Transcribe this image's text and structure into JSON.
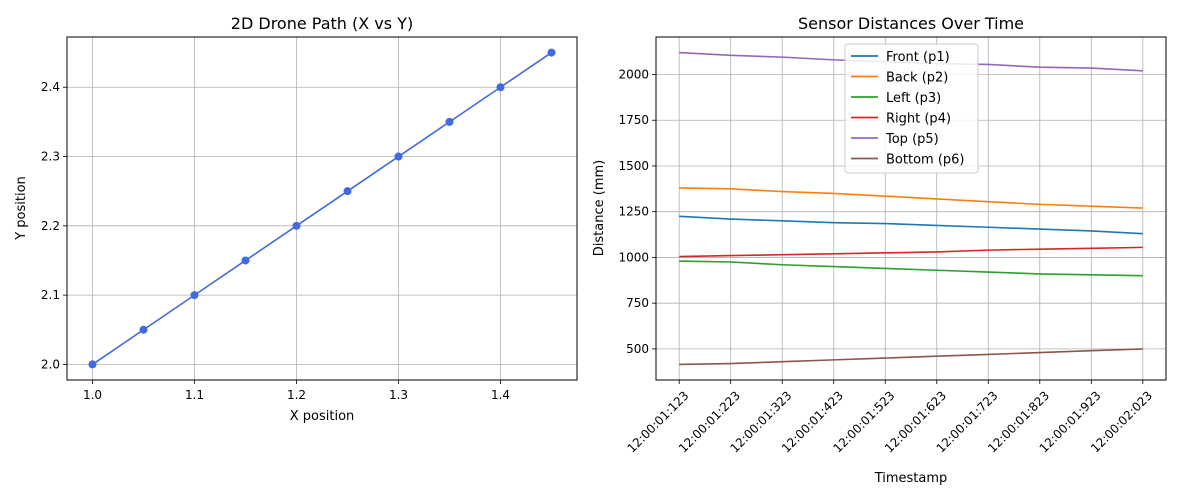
{
  "chart_data": [
    {
      "type": "line",
      "title": "2D Drone Path (X vs Y)",
      "xlabel": "X position",
      "ylabel": "Y position",
      "xlim": [
        0.975,
        1.475
      ],
      "ylim": [
        1.9775,
        2.4725
      ],
      "xticks": [
        1.0,
        1.1,
        1.2,
        1.3,
        1.4
      ],
      "xtick_labels": [
        "1.0",
        "1.1",
        "1.2",
        "1.3",
        "1.4"
      ],
      "yticks": [
        2.0,
        2.1,
        2.2,
        2.3,
        2.4
      ],
      "ytick_labels": [
        "2.0",
        "2.1",
        "2.2",
        "2.3",
        "2.4"
      ],
      "grid": true,
      "markers": true,
      "color": "#4169e1",
      "x": [
        1.0,
        1.05,
        1.1,
        1.15,
        1.2,
        1.25,
        1.3,
        1.35,
        1.4,
        1.45
      ],
      "y": [
        2.0,
        2.05,
        2.1,
        2.15,
        2.2,
        2.25,
        2.3,
        2.35,
        2.4,
        2.45
      ]
    },
    {
      "type": "line",
      "title": "Sensor Distances Over Time",
      "xlabel": "Timestamp",
      "ylabel": "Distance (mm)",
      "ylim": [
        330,
        2205
      ],
      "yticks": [
        500,
        750,
        1000,
        1250,
        1500,
        1750,
        2000
      ],
      "ytick_labels": [
        "500",
        "750",
        "1000",
        "1250",
        "1500",
        "1750",
        "2000"
      ],
      "grid": true,
      "legend_position": "upper-center",
      "categories": [
        "12:00:01:123",
        "12:00:01:223",
        "12:00:01:323",
        "12:00:01:423",
        "12:00:01:523",
        "12:00:01:623",
        "12:00:01:723",
        "12:00:01:823",
        "12:00:01:923",
        "12:00:02:023"
      ],
      "series": [
        {
          "name": "Front (p1)",
          "color": "#1f77b4",
          "values": [
            1225,
            1210,
            1200,
            1190,
            1185,
            1175,
            1165,
            1155,
            1145,
            1130
          ]
        },
        {
          "name": "Back (p2)",
          "color": "#ff7f0e",
          "values": [
            1380,
            1375,
            1360,
            1350,
            1335,
            1320,
            1305,
            1290,
            1280,
            1270
          ]
        },
        {
          "name": "Left (p3)",
          "color": "#2ca02c",
          "values": [
            980,
            975,
            960,
            950,
            940,
            930,
            920,
            910,
            905,
            900
          ]
        },
        {
          "name": "Right (p4)",
          "color": "#d62728",
          "values": [
            1005,
            1010,
            1015,
            1020,
            1025,
            1030,
            1040,
            1045,
            1050,
            1055
          ]
        },
        {
          "name": "Top (p5)",
          "color": "#9467bd",
          "values": [
            2120,
            2105,
            2095,
            2080,
            2070,
            2060,
            2055,
            2040,
            2035,
            2020
          ]
        },
        {
          "name": "Bottom (p6)",
          "color": "#8c564b",
          "values": [
            415,
            420,
            430,
            440,
            450,
            460,
            470,
            480,
            490,
            500
          ]
        }
      ]
    }
  ]
}
